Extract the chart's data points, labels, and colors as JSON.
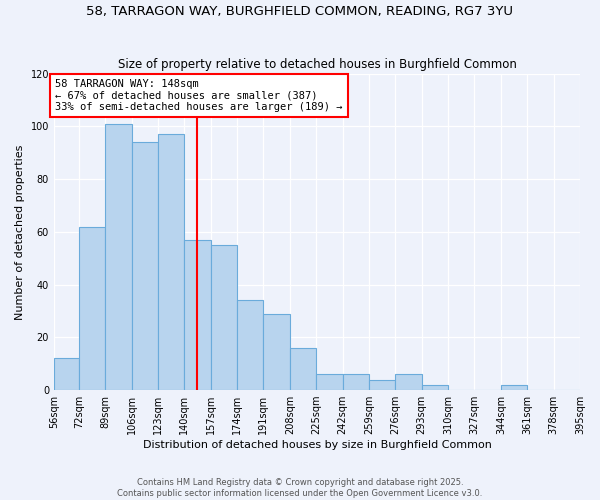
{
  "title": "58, TARRAGON WAY, BURGHFIELD COMMON, READING, RG7 3YU",
  "subtitle": "Size of property relative to detached houses in Burghfield Common",
  "xlabel": "Distribution of detached houses by size in Burghfield Common",
  "ylabel": "Number of detached properties",
  "bin_edges": [
    56,
    72,
    89,
    106,
    123,
    140,
    157,
    174,
    191,
    208,
    225,
    242,
    259,
    276,
    293,
    310,
    327,
    344,
    361,
    378,
    395
  ],
  "bin_labels": [
    "56sqm",
    "72sqm",
    "89sqm",
    "106sqm",
    "123sqm",
    "140sqm",
    "157sqm",
    "174sqm",
    "191sqm",
    "208sqm",
    "225sqm",
    "242sqm",
    "259sqm",
    "276sqm",
    "293sqm",
    "310sqm",
    "327sqm",
    "344sqm",
    "361sqm",
    "378sqm",
    "395sqm"
  ],
  "values": [
    12,
    62,
    101,
    94,
    97,
    57,
    55,
    34,
    29,
    16,
    6,
    6,
    4,
    6,
    2,
    0,
    0,
    2,
    0,
    0
  ],
  "bar_color": "#b8d4ee",
  "bar_edge_color": "#6aabdb",
  "property_line_x": 148,
  "property_line_color": "red",
  "annotation_title": "58 TARRAGON WAY: 148sqm",
  "annotation_line1": "← 67% of detached houses are smaller (387)",
  "annotation_line2": "33% of semi-detached houses are larger (189) →",
  "footer1": "Contains HM Land Registry data © Crown copyright and database right 2025.",
  "footer2": "Contains public sector information licensed under the Open Government Licence v3.0.",
  "ylim": [
    0,
    120
  ],
  "bg_color": "#eef2fb",
  "plot_bg_color": "#eef2fb",
  "grid_color": "#ffffff",
  "title_fontsize": 9.5,
  "subtitle_fontsize": 8.5,
  "axis_label_fontsize": 8,
  "tick_fontsize": 7,
  "annotation_fontsize": 7.5,
  "footer_fontsize": 6
}
